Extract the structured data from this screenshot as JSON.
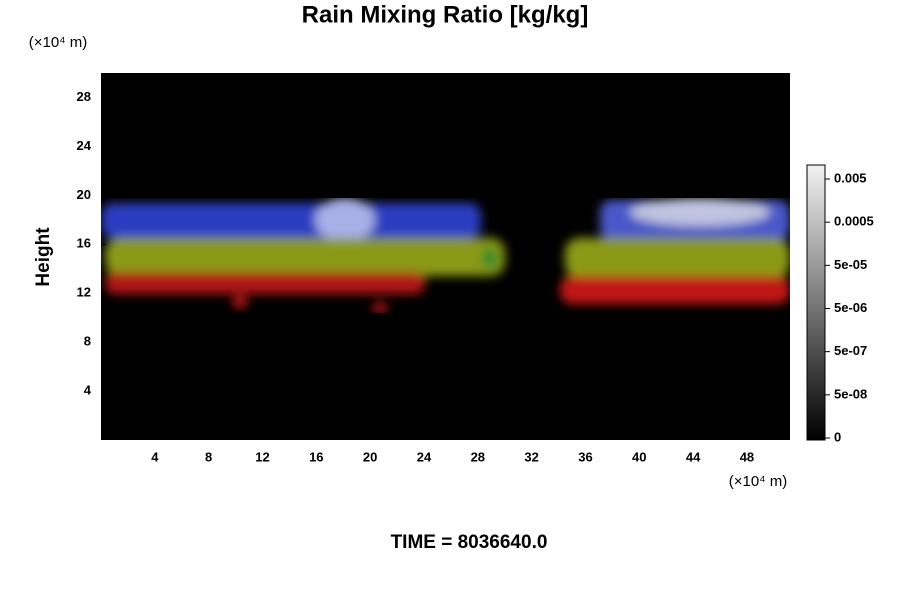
{
  "chart_data": {
    "type": "heatmap",
    "title": "Rain Mixing Ratio [kg/kg]",
    "x_unit_label": "(×10⁴ m)",
    "y_unit_label": "(×10⁴ m)",
    "y_label": "Height",
    "xlim": [
      0,
      51.2
    ],
    "xticks": [
      4,
      8,
      12,
      16,
      20,
      24,
      28,
      32,
      36,
      40,
      44,
      48
    ],
    "ylim": [
      0,
      30
    ],
    "yticks": [
      4,
      8,
      12,
      16,
      20,
      24,
      28
    ],
    "colorbar_ticks": [
      0,
      {
        "value": 5e-08,
        "label": "5e-08"
      },
      {
        "value": 5e-07,
        "label": "5e-07"
      },
      {
        "value": 5e-06,
        "label": "5e-06"
      },
      {
        "value": 5e-05,
        "label": "5e-05"
      },
      0.0005,
      0.005
    ],
    "footer": "TIME = 8036640.0"
  }
}
